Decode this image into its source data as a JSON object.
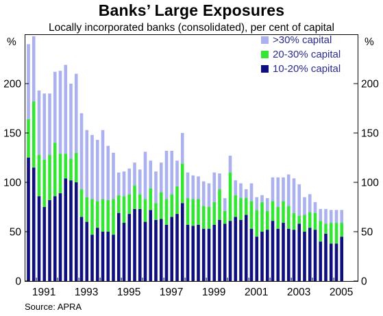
{
  "chart_data": {
    "type": "bar",
    "stacked": true,
    "title": "Banks’ Large Exposures",
    "subtitle": "Locally incorporated banks (consolidated), per cent of capital",
    "ylabel_left": "%",
    "ylabel_right": "%",
    "ylim": [
      0,
      250
    ],
    "yticks": [
      0,
      50,
      100,
      150,
      200
    ],
    "x_tick_labels": [
      "1991",
      "1993",
      "1995",
      "1997",
      "1999",
      "2001",
      "2003",
      "2005"
    ],
    "grid": false,
    "legend_position": "top-right",
    "colors": {
      ">30": "#aab1ee",
      "20-30": "#33e633",
      "10-20": "#0f0f80"
    },
    "legend": [
      {
        "key": ">30",
        "label": ">30% capital"
      },
      {
        "key": "20-30",
        "label": "20-30% capital"
      },
      {
        "key": "10-20",
        "label": "10-20% capital"
      }
    ],
    "start_quarter": "1990 Q3",
    "series": [
      {
        "key": "10-20",
        "name": "10-20% capital",
        "values": [
          125,
          115,
          86,
          75,
          82,
          86,
          89,
          104,
          102,
          100,
          65,
          60,
          47,
          54,
          50,
          50,
          47,
          69,
          59,
          68,
          73,
          73,
          60,
          72,
          62,
          63,
          57,
          65,
          68,
          79,
          57,
          56,
          57,
          53,
          53,
          57,
          62,
          58,
          61,
          65,
          62,
          67,
          53,
          45,
          50,
          52,
          61,
          53,
          59,
          53,
          52,
          58,
          50,
          54,
          52,
          40,
          48,
          38,
          38,
          45
        ]
      },
      {
        "key": "20-30",
        "name": "20-30% capital",
        "values": [
          39,
          67,
          42,
          48,
          46,
          54,
          40,
          25,
          22,
          30,
          28,
          25,
          36,
          27,
          33,
          32,
          36,
          18,
          27,
          20,
          24,
          15,
          23,
          22,
          17,
          27,
          26,
          23,
          28,
          40,
          27,
          27,
          26,
          23,
          22,
          23,
          31,
          13,
          49,
          22,
          22,
          17,
          28,
          27,
          30,
          19,
          20,
          22,
          22,
          23,
          17,
          8,
          17,
          16,
          17,
          21,
          10,
          21,
          21,
          14
        ]
      },
      {
        "key": ">30",
        "name": ">30% capital",
        "values": [
          76,
          66,
          65,
          67,
          62,
          72,
          84,
          90,
          76,
          80,
          77,
          68,
          65,
          62,
          70,
          55,
          47,
          23,
          25,
          26,
          23,
          25,
          48,
          28,
          32,
          30,
          49,
          44,
          26,
          31,
          26,
          24,
          23,
          25,
          24,
          30,
          16,
          13,
          17,
          15,
          15,
          9,
          18,
          13,
          7,
          13,
          24,
          30,
          24,
          32,
          35,
          32,
          18,
          18,
          11,
          12,
          15,
          13,
          13,
          13
        ]
      }
    ]
  },
  "source": "Source: APRA"
}
